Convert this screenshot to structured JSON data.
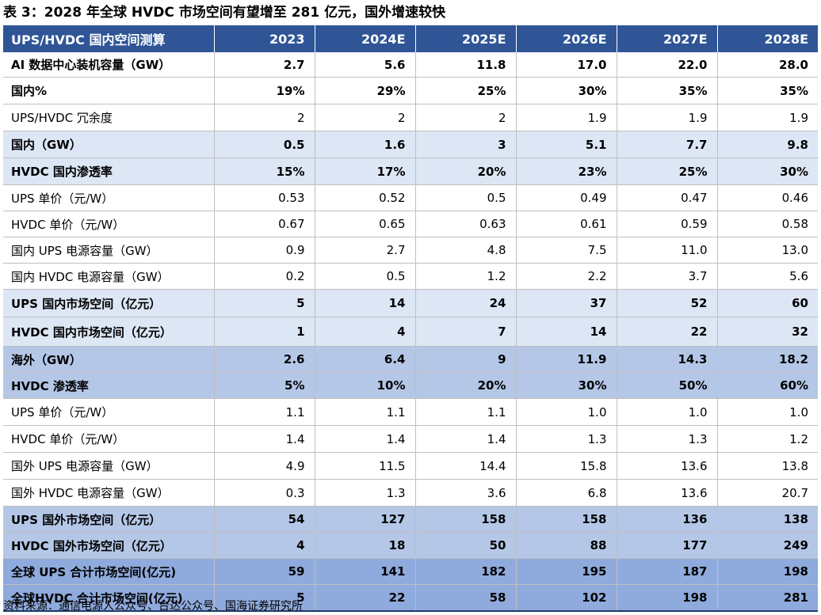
{
  "caption": "表 3：2028 年全球 HVDC 市场空间有望增至 281 亿元，国外增速较快",
  "header": [
    "UPS/HVDC 国内空间测算",
    "2023",
    "2024E",
    "2025E",
    "2026E",
    "2027E",
    "2028E"
  ],
  "rows": [
    {
      "label": "AI 数据中心装机容量（GW）",
      "values": [
        "2.7",
        "5.6",
        "11.8",
        "17.0",
        "22.0",
        "28.0"
      ]
    },
    {
      "label": "国内%",
      "values": [
        "19%",
        "29%",
        "25%",
        "30%",
        "35%",
        "35%"
      ]
    },
    {
      "label": "UPS/HVDC 冗余度",
      "values": [
        "2",
        "2",
        "2",
        "1.9",
        "1.9",
        "1.9"
      ]
    },
    {
      "label": "国内（GW）",
      "values": [
        "0.5",
        "1.6",
        "3",
        "5.1",
        "7.7",
        "9.8"
      ]
    },
    {
      "label": "HVDC 国内渗透率",
      "values": [
        "15%",
        "17%",
        "20%",
        "23%",
        "25%",
        "30%"
      ]
    },
    {
      "label": "UPS 单价（元/W）",
      "values": [
        "0.53",
        "0.52",
        "0.5",
        "0.49",
        "0.47",
        "0.46"
      ]
    },
    {
      "label": "HVDC 单价（元/W）",
      "values": [
        "0.67",
        "0.65",
        "0.63",
        "0.61",
        "0.59",
        "0.58"
      ]
    },
    {
      "label": "国内 UPS 电源容量（GW）",
      "values": [
        "0.9",
        "2.7",
        "4.8",
        "7.5",
        "11.0",
        "13.0"
      ]
    },
    {
      "label": "国内 HVDC 电源容量（GW）",
      "values": [
        "0.2",
        "0.5",
        "1.2",
        "2.2",
        "3.7",
        "5.6"
      ]
    },
    {
      "label": "UPS 国内市场空间（亿元）",
      "values": [
        "5",
        "14",
        "24",
        "37",
        "52",
        "60"
      ]
    },
    {
      "label": "HVDC 国内市场空间（亿元）",
      "values": [
        "1",
        "4",
        "7",
        "14",
        "22",
        "32"
      ]
    },
    {
      "label": "海外（GW）",
      "values": [
        "2.6",
        "6.4",
        "9",
        "11.9",
        "14.3",
        "18.2"
      ]
    },
    {
      "label": "HVDC 渗透率",
      "values": [
        "5%",
        "10%",
        "20%",
        "30%",
        "50%",
        "60%"
      ]
    },
    {
      "label": "UPS 单价（元/W）",
      "values": [
        "1.1",
        "1.1",
        "1.1",
        "1.0",
        "1.0",
        "1.0"
      ]
    },
    {
      "label": "HVDC 单价（元/W）",
      "values": [
        "1.4",
        "1.4",
        "1.4",
        "1.3",
        "1.3",
        "1.2"
      ]
    },
    {
      "label": "国外 UPS 电源容量（GW）",
      "values": [
        "4.9",
        "11.5",
        "14.4",
        "15.8",
        "13.6",
        "13.8"
      ]
    },
    {
      "label": "国外 HVDC 电源容量（GW）",
      "values": [
        "0.3",
        "1.3",
        "3.6",
        "6.8",
        "13.6",
        "20.7"
      ]
    },
    {
      "label": "UPS 国外市场空间（亿元）",
      "values": [
        "54",
        "127",
        "158",
        "158",
        "136",
        "138"
      ]
    },
    {
      "label": "HVDC 国外市场空间（亿元）",
      "values": [
        "4",
        "18",
        "50",
        "88",
        "177",
        "249"
      ]
    },
    {
      "label": "全球 UPS 合计市场空间(亿元)",
      "values": [
        "59",
        "141",
        "182",
        "195",
        "187",
        "198"
      ]
    },
    {
      "label": "全球HVDC 合计市场空间(亿元)",
      "values": [
        "5",
        "22",
        "58",
        "102",
        "198",
        "281"
      ]
    }
  ],
  "source": "资料来源：通信电源人公众号、台达公众号、国海证券研究所"
}
